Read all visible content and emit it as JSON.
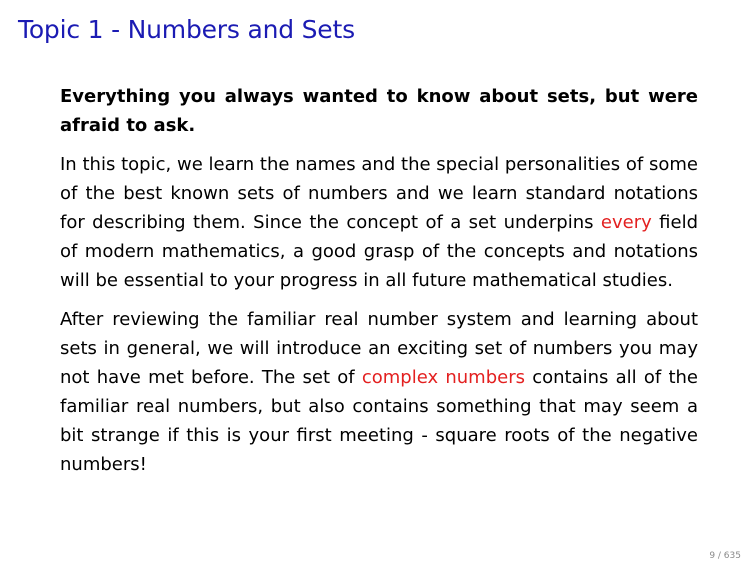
{
  "slide": {
    "title": "Topic 1 - Numbers and Sets",
    "intro": "Everything you always wanted to know about sets, but were afraid to ask.",
    "paragraph1": {
      "before": "In this topic, we learn the names and the special personalities of some of the best known sets of numbers and we learn standard notations for describing them.  Since the concept of a set underpins ",
      "highlight": "every",
      "after": " field of modern mathematics, a good grasp of the concepts and notations will be essential to your progress in all future mathematical studies."
    },
    "paragraph2": {
      "before": "After reviewing the familiar real number system and learning about sets in general, we will introduce an exciting set of numbers you may not have met before.  The set of ",
      "highlight": "complex numbers",
      "after": " contains all of the familiar real numbers, but also contains something that may seem a bit strange if this is your first meeting - square roots of the negative numbers!"
    },
    "page_number": "9 / 635"
  },
  "colors": {
    "title": "#1b1bb3",
    "alert": "#e32020",
    "page_number": "#8a8a8a"
  }
}
